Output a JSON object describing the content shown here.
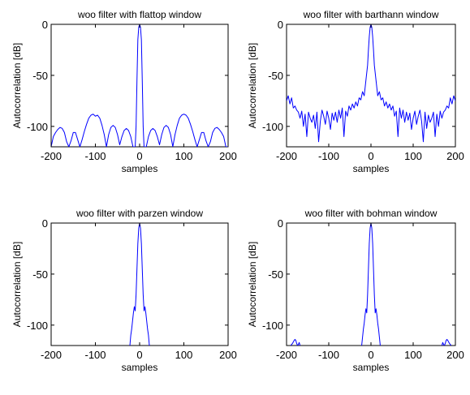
{
  "chart_data": [
    {
      "type": "line",
      "title": "woo filter with flattop window",
      "xlabel": "samples",
      "ylabel": "Autocorrelation [dB]",
      "xlim": [
        -200,
        200
      ],
      "ylim": [
        -120,
        0
      ],
      "xticks": [
        -200,
        -100,
        0,
        100,
        200
      ],
      "yticks": [
        0,
        -50,
        -100
      ],
      "grid": false,
      "series_color": "#0000ff",
      "series": [
        {
          "x": [
            -200,
            -195,
            -190,
            -185,
            -180,
            -175,
            -170,
            -165,
            -160,
            -155,
            -150,
            -145,
            -140,
            -135,
            -130,
            -125,
            -120,
            -115,
            -110,
            -105,
            -100,
            -95,
            -90,
            -85,
            -80,
            -75,
            -70,
            -65,
            -60,
            -55,
            -50,
            -45,
            -40,
            -35,
            -30,
            -25,
            -20,
            -15,
            -10,
            -8,
            -6,
            -4,
            -2,
            0,
            2,
            4,
            6,
            8,
            10,
            15,
            20,
            25,
            30,
            35,
            40,
            45,
            50,
            55,
            60,
            65,
            70,
            75,
            80,
            85,
            90,
            95,
            100,
            105,
            110,
            115,
            120,
            125,
            130,
            135,
            140,
            145,
            150,
            155,
            160,
            165,
            170,
            175,
            180,
            185,
            190,
            195,
            200
          ],
          "y": [
            -120,
            -110,
            -106,
            -103,
            -101,
            -102,
            -106,
            -115,
            -120,
            -114,
            -106,
            -106,
            -113,
            -120,
            -113,
            -105,
            -98,
            -92,
            -89,
            -88,
            -90,
            -89,
            -92,
            -99,
            -108,
            -120,
            -108,
            -101,
            -99,
            -101,
            -108,
            -118,
            -110,
            -104,
            -102,
            -104,
            -110,
            -120,
            -120,
            -100,
            -55,
            -15,
            -3,
            0,
            -3,
            -15,
            -55,
            -100,
            -120,
            -120,
            -110,
            -104,
            -102,
            -104,
            -110,
            -118,
            -108,
            -101,
            -99,
            -101,
            -108,
            -120,
            -108,
            -99,
            -92,
            -89,
            -88,
            -89,
            -92,
            -98,
            -105,
            -113,
            -120,
            -113,
            -106,
            -106,
            -114,
            -120,
            -115,
            -106,
            -102,
            -101,
            -103,
            -106,
            -110,
            -120,
            -120
          ]
        }
      ]
    },
    {
      "type": "line",
      "title": "woo filter with barthann window",
      "xlabel": "samples",
      "ylabel": "Autocorrelation [dB]",
      "xlim": [
        -200,
        200
      ],
      "ylim": [
        -120,
        0
      ],
      "xticks": [
        -200,
        -100,
        0,
        100,
        200
      ],
      "yticks": [
        0,
        -50,
        -100
      ],
      "grid": false,
      "series_color": "#0000ff",
      "series": [
        {
          "x": [
            -200,
            -196,
            -192,
            -188,
            -184,
            -180,
            -176,
            -172,
            -168,
            -164,
            -160,
            -156,
            -152,
            -148,
            -144,
            -140,
            -136,
            -132,
            -128,
            -124,
            -120,
            -116,
            -112,
            -108,
            -104,
            -100,
            -96,
            -92,
            -88,
            -84,
            -80,
            -76,
            -72,
            -68,
            -64,
            -60,
            -56,
            -52,
            -48,
            -44,
            -40,
            -36,
            -32,
            -28,
            -24,
            -20,
            -16,
            -12,
            -8,
            -6,
            -4,
            -2,
            0,
            2,
            4,
            6,
            8,
            12,
            16,
            20,
            24,
            28,
            32,
            36,
            40,
            44,
            48,
            52,
            56,
            60,
            64,
            68,
            72,
            76,
            80,
            84,
            88,
            92,
            96,
            100,
            104,
            108,
            112,
            116,
            120,
            124,
            128,
            132,
            136,
            140,
            144,
            148,
            152,
            156,
            160,
            164,
            168,
            172,
            176,
            180,
            184,
            188,
            192,
            196,
            200
          ],
          "y": [
            -75,
            -70,
            -78,
            -72,
            -82,
            -80,
            -84,
            -86,
            -92,
            -85,
            -100,
            -88,
            -110,
            -86,
            -92,
            -96,
            -89,
            -102,
            -86,
            -115,
            -95,
            -84,
            -90,
            -98,
            -85,
            -92,
            -103,
            -87,
            -94,
            -86,
            -96,
            -84,
            -92,
            -82,
            -110,
            -85,
            -90,
            -80,
            -84,
            -78,
            -82,
            -76,
            -80,
            -72,
            -74,
            -66,
            -70,
            -55,
            -40,
            -25,
            -12,
            -3,
            0,
            -3,
            -12,
            -25,
            -40,
            -55,
            -70,
            -66,
            -74,
            -72,
            -80,
            -76,
            -82,
            -78,
            -84,
            -80,
            -90,
            -85,
            -110,
            -82,
            -92,
            -84,
            -96,
            -86,
            -94,
            -87,
            -103,
            -92,
            -85,
            -98,
            -90,
            -84,
            -95,
            -115,
            -86,
            -102,
            -89,
            -96,
            -92,
            -86,
            -110,
            -88,
            -100,
            -85,
            -92,
            -86,
            -84,
            -80,
            -82,
            -72,
            -78,
            -70,
            -75
          ]
        }
      ]
    },
    {
      "type": "line",
      "title": "woo filter with parzen window",
      "xlabel": "samples",
      "ylabel": "Autocorrelation [dB]",
      "xlim": [
        -200,
        200
      ],
      "ylim": [
        -120,
        0
      ],
      "xticks": [
        -200,
        -100,
        0,
        100,
        200
      ],
      "yticks": [
        0,
        -50,
        -100
      ],
      "grid": false,
      "series_color": "#0000ff",
      "series": [
        {
          "x": [
            -22,
            -20,
            -18,
            -16,
            -14,
            -12,
            -10,
            -8,
            -6,
            -4,
            -2,
            0,
            2,
            4,
            6,
            8,
            10,
            12,
            14,
            16,
            18,
            20,
            22
          ],
          "y": [
            -120,
            -110,
            -104,
            -96,
            -88,
            -82,
            -86,
            -70,
            -45,
            -20,
            -5,
            0,
            -5,
            -20,
            -45,
            -70,
            -86,
            -82,
            -88,
            -96,
            -104,
            -110,
            -120
          ]
        }
      ]
    },
    {
      "type": "line",
      "title": "woo filter with bohman window",
      "xlabel": "samples",
      "ylabel": "Autocorrelation [dB]",
      "xlim": [
        -200,
        200
      ],
      "ylim": [
        -120,
        0
      ],
      "xticks": [
        -200,
        -100,
        0,
        100,
        200
      ],
      "yticks": [
        0,
        -50,
        -100
      ],
      "grid": false,
      "series_color": "#0000ff",
      "series": [
        {
          "x": [
            -190,
            -186,
            -182,
            -180,
            -178,
            -176,
            -174,
            -172,
            -170,
            -168
          ],
          "y": [
            -120,
            -118,
            -115,
            -114,
            -115,
            -118,
            -120,
            -119,
            -117,
            -120
          ]
        },
        {
          "x": [
            -22,
            -20,
            -18,
            -16,
            -14,
            -12,
            -10,
            -8,
            -6,
            -4,
            -2,
            0,
            2,
            4,
            6,
            8,
            10,
            12,
            14,
            16,
            18,
            20,
            22
          ],
          "y": [
            -120,
            -112,
            -104,
            -98,
            -90,
            -84,
            -88,
            -70,
            -45,
            -20,
            -5,
            0,
            -5,
            -20,
            -45,
            -70,
            -88,
            -84,
            -90,
            -98,
            -104,
            -112,
            -120
          ]
        },
        {
          "x": [
            168,
            170,
            172,
            174,
            176,
            178,
            180,
            182,
            186,
            190
          ],
          "y": [
            -120,
            -117,
            -119,
            -120,
            -118,
            -115,
            -114,
            -115,
            -118,
            -120
          ]
        }
      ]
    }
  ]
}
